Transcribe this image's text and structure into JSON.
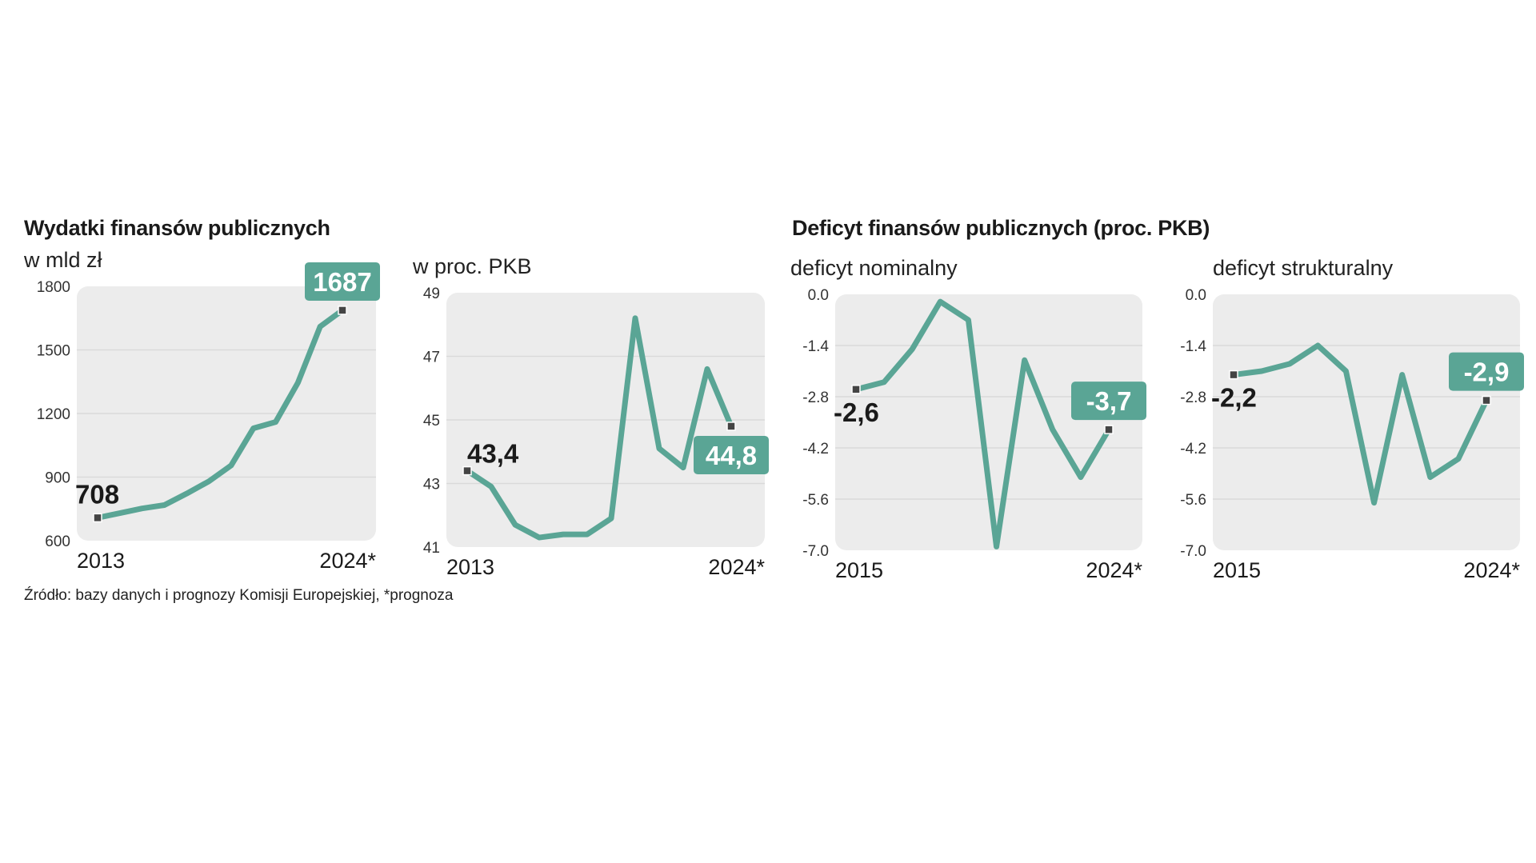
{
  "titles": {
    "left": "Wydatki finansów publicznych",
    "right": "Deficyt finansów publicznych (proc. PKB)"
  },
  "source": "Źródło: bazy danych i prognozy Komisji Europejskiej, *prognoza",
  "colors": {
    "line": "#5aa595",
    "panel": "#ececec",
    "grid": "#d9d9d9",
    "marker": "#444444"
  },
  "chart_data": [
    {
      "id": "spending-mld",
      "type": "line",
      "subtitle": "w mld zł",
      "yticks": [
        "1800",
        "1500",
        "1200",
        "900",
        "600"
      ],
      "ylim": [
        600,
        1800
      ],
      "x": [
        2013,
        2014,
        2015,
        2016,
        2017,
        2018,
        2019,
        2020,
        2021,
        2022,
        2023,
        2024
      ],
      "xlabels": [
        "2013",
        "2024*"
      ],
      "values": [
        708,
        730,
        752,
        768,
        822,
        880,
        955,
        1130,
        1160,
        1345,
        1610,
        1687
      ],
      "start_label": "708",
      "end_label": "1687"
    },
    {
      "id": "spending-gdp",
      "type": "line",
      "subtitle": "w proc. PKB",
      "yticks": [
        "49",
        "47",
        "45",
        "43",
        "41"
      ],
      "ylim": [
        41,
        49
      ],
      "x": [
        2013,
        2014,
        2015,
        2016,
        2017,
        2018,
        2019,
        2020,
        2021,
        2022,
        2023,
        2024
      ],
      "xlabels": [
        "2013",
        "2024*"
      ],
      "values": [
        43.4,
        42.9,
        41.7,
        41.3,
        41.4,
        41.4,
        41.9,
        48.2,
        44.1,
        43.5,
        46.6,
        44.8
      ],
      "start_label": "43,4",
      "end_label": "44,8"
    },
    {
      "id": "deficit-nominal",
      "type": "line",
      "subtitle": "deficyt nominalny",
      "yticks": [
        "0.0",
        "-1.4",
        "-2.8",
        "-4.2",
        "-5.6",
        "-7.0"
      ],
      "ylim": [
        -7.0,
        0.0
      ],
      "x": [
        2015,
        2016,
        2017,
        2018,
        2019,
        2020,
        2021,
        2022,
        2023,
        2024
      ],
      "xlabels": [
        "2015",
        "2024*"
      ],
      "values": [
        -2.6,
        -2.4,
        -1.5,
        -0.2,
        -0.7,
        -6.9,
        -1.8,
        -3.7,
        -5.0,
        -3.7
      ],
      "start_label": "-2,6",
      "end_label": "-3,7"
    },
    {
      "id": "deficit-structural",
      "type": "line",
      "subtitle": "deficyt strukturalny",
      "yticks": [
        "0.0",
        "-1.4",
        "-2.8",
        "-4.2",
        "-5.6",
        "-7.0"
      ],
      "ylim": [
        -7.0,
        0.0
      ],
      "x": [
        2015,
        2016,
        2017,
        2018,
        2019,
        2020,
        2021,
        2022,
        2023,
        2024
      ],
      "xlabels": [
        "2015",
        "2024*"
      ],
      "values": [
        -2.2,
        -2.1,
        -1.9,
        -1.4,
        -2.1,
        -5.7,
        -2.2,
        -5.0,
        -4.5,
        -2.9
      ],
      "start_label": "-2,2",
      "end_label": "-2,9"
    }
  ]
}
